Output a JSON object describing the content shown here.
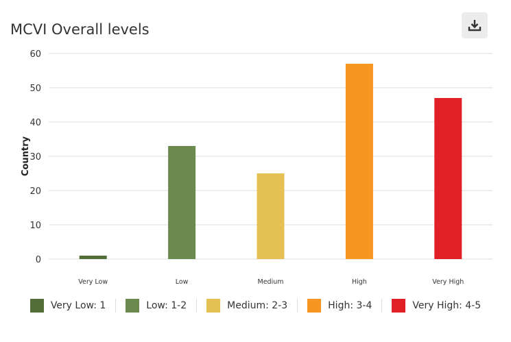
{
  "header": {
    "title": "MCVI Overall levels",
    "download_icon": "download-icon"
  },
  "chart_data": {
    "type": "bar",
    "title": "MCVI Overall levels",
    "ylabel": "Country",
    "xlabel": "",
    "categories": [
      "Very Low",
      "Low",
      "Medium",
      "High",
      "Very High"
    ],
    "values": [
      1,
      33,
      25,
      57,
      47
    ],
    "colors": [
      "#546e3a",
      "#6b8a4d",
      "#e5c153",
      "#f79620",
      "#e01f27"
    ],
    "ylim": [
      0,
      60
    ],
    "yticks": [
      "0",
      "10",
      "20",
      "30",
      "40",
      "50",
      "60"
    ],
    "grid": true,
    "legend_position": "bottom",
    "legend": [
      "Very Low: 1",
      "Low: 1-2",
      "Medium: 2-3",
      "High: 3-4",
      "Very High: 4-5"
    ]
  }
}
